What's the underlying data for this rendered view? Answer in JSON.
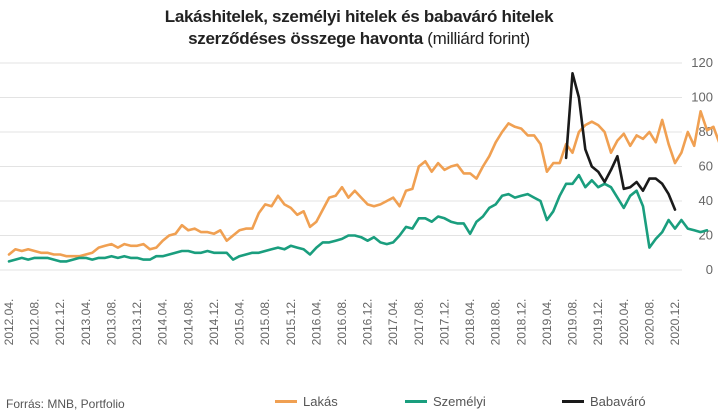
{
  "title": {
    "line1": "Lakáshitelek, személyi hitelek és babaváró hitelek",
    "line2_bold": "szerződéses összege havonta",
    "line2_normal": " (milliárd forint)"
  },
  "source": "Forrás: MNB, Portfolio",
  "colors": {
    "lakas": "#f0a052",
    "szemelyi": "#1a9e7e",
    "babavaro": "#1a1a1a",
    "grid": "#e3e3e3",
    "axis_text": "#666666"
  },
  "chart_data": {
    "type": "line",
    "title": "Lakáshitelek, személyi hitelek és babaváró hitelek szerződéses összege havonta (milliárd forint)",
    "x_start": "2012.04.",
    "x_ticks": [
      "2012.04.",
      "2012.08.",
      "2012.12.",
      "2013.04.",
      "2013.08.",
      "2013.12.",
      "2014.04.",
      "2014.08.",
      "2014.12.",
      "2015.04.",
      "2015.08.",
      "2015.12.",
      "2016.04.",
      "2016.08.",
      "2016.12.",
      "2017.04.",
      "2017.08.",
      "2017.12.",
      "2018.04.",
      "2018.08.",
      "2018.12.",
      "2019.04.",
      "2019.08.",
      "2019.12.",
      "2020.04.",
      "2020.08.",
      "2020.12."
    ],
    "yticks": [
      0,
      20,
      40,
      60,
      80,
      100,
      120
    ],
    "ylim": [
      0,
      120
    ],
    "legend_position": "bottom",
    "grid": true,
    "series": [
      {
        "name": "Lakás",
        "color": "#f0a052",
        "values": [
          9,
          12,
          11,
          12,
          11,
          10,
          10,
          9,
          9,
          8,
          8,
          8,
          9,
          10,
          13,
          14,
          15,
          13,
          15,
          14,
          14,
          15,
          12,
          13,
          17,
          20,
          21,
          26,
          23,
          24,
          22,
          22,
          21,
          23,
          17,
          20,
          23,
          24,
          24,
          33,
          38,
          37,
          43,
          38,
          36,
          32,
          34,
          25,
          28,
          35,
          42,
          43,
          48,
          42,
          46,
          42,
          38,
          37,
          38,
          40,
          42,
          37,
          46,
          47,
          60,
          63,
          57,
          62,
          58,
          60,
          61,
          56,
          56,
          53,
          60,
          66,
          74,
          80,
          85,
          83,
          82,
          78,
          78,
          73,
          57,
          62,
          62,
          73,
          68,
          80,
          84,
          86,
          84,
          80,
          68,
          75,
          79,
          72,
          78,
          76,
          80,
          74,
          87,
          73,
          62,
          68,
          80,
          72,
          92,
          81,
          83,
          73,
          58
        ]
      },
      {
        "name": "Személyi",
        "color": "#1a9e7e",
        "values": [
          5,
          6,
          7,
          6,
          7,
          7,
          7,
          6,
          5,
          5,
          6,
          7,
          7,
          6,
          7,
          7,
          8,
          7,
          8,
          7,
          7,
          6,
          6,
          8,
          8,
          9,
          10,
          11,
          11,
          10,
          10,
          11,
          10,
          10,
          10,
          6,
          8,
          9,
          10,
          10,
          11,
          12,
          13,
          12,
          14,
          13,
          12,
          9,
          13,
          16,
          16,
          17,
          18,
          20,
          20,
          19,
          17,
          19,
          16,
          15,
          16,
          20,
          25,
          24,
          30,
          30,
          28,
          31,
          30,
          28,
          27,
          27,
          21,
          28,
          31,
          36,
          38,
          43,
          44,
          42,
          43,
          44,
          42,
          40,
          29,
          34,
          43,
          50,
          50,
          55,
          48,
          52,
          48,
          50,
          48,
          42,
          36,
          43,
          46,
          37,
          13,
          18,
          22,
          29,
          24,
          29,
          24,
          23,
          22,
          23
        ]
      },
      {
        "name": "Babaváró",
        "color": "#1a1a1a",
        "x_offset": 87,
        "values": [
          65,
          114,
          100,
          70,
          60,
          57,
          51,
          58,
          66,
          47,
          48,
          51,
          46,
          53,
          53,
          50,
          44,
          35
        ]
      }
    ]
  }
}
